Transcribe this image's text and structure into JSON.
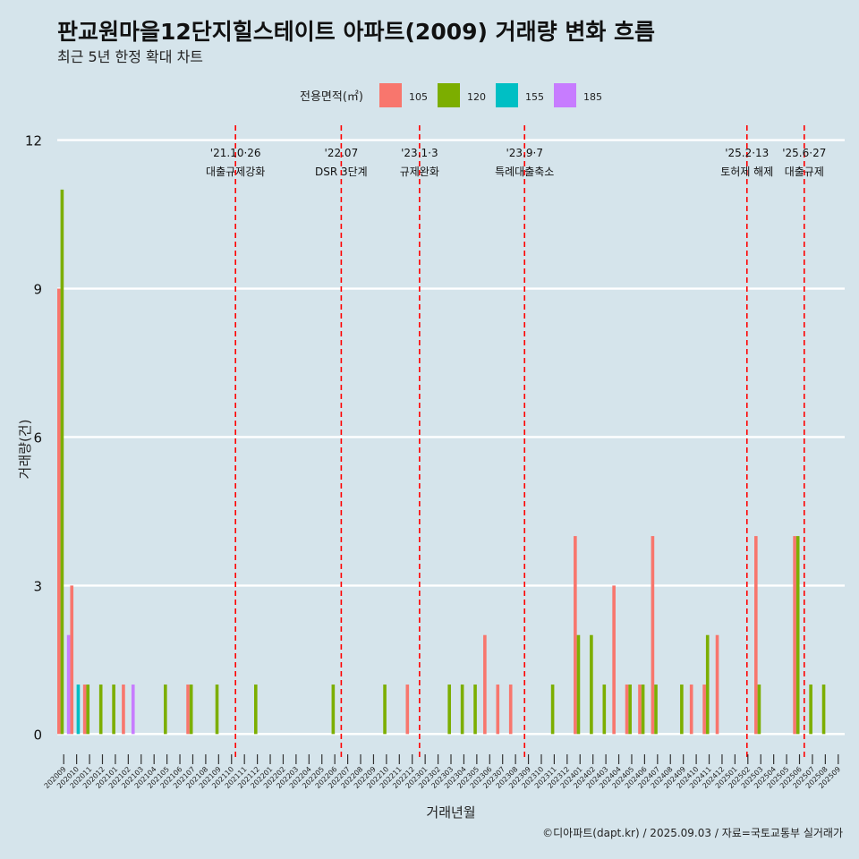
{
  "chart_data": {
    "type": "bar",
    "title": "판교원마을12단지힐스테이트 아파트(2009) 거래량 변화 흐름",
    "subtitle": "최근 5년 한정 확대 차트",
    "xlabel": "거래년월",
    "ylabel": "거래량(건)",
    "ylim": [
      -0.5,
      12.3
    ],
    "yticks": [
      0,
      3,
      6,
      9,
      12
    ],
    "grid": "horizontal",
    "legend": {
      "title": "전용면적(㎡)",
      "placement": "top"
    },
    "caption": "©디아파트(dapt.kr) / 2025.09.03 / 자료=국토교통부 실거래가",
    "categories": [
      "202009",
      "202010",
      "202011",
      "202012",
      "202101",
      "202102",
      "202103",
      "202104",
      "202105",
      "202106",
      "202107",
      "202108",
      "202109",
      "202110",
      "202111",
      "202112",
      "202201",
      "202202",
      "202203",
      "202204",
      "202205",
      "202206",
      "202207",
      "202208",
      "202209",
      "202210",
      "202211",
      "202212",
      "202301",
      "202302",
      "202303",
      "202304",
      "202305",
      "202306",
      "202307",
      "202308",
      "202309",
      "202310",
      "202311",
      "202312",
      "202401",
      "202402",
      "202403",
      "202404",
      "202405",
      "202406",
      "202407",
      "202408",
      "202409",
      "202410",
      "202411",
      "202412",
      "202501",
      "202502",
      "202503",
      "202504",
      "202505",
      "202506",
      "202507",
      "202508",
      "202509"
    ],
    "series": [
      {
        "name": "105",
        "color": "#f8766d",
        "values": [
          9,
          3,
          1,
          0,
          0,
          1,
          0,
          0,
          0,
          0,
          1,
          0,
          0,
          0,
          0,
          0,
          0,
          0,
          0,
          0,
          0,
          0,
          0,
          0,
          0,
          0,
          0,
          1,
          0,
          0,
          0,
          0,
          0,
          2,
          1,
          1,
          0,
          0,
          0,
          0,
          4,
          0,
          0,
          3,
          1,
          1,
          4,
          0,
          0,
          1,
          1,
          2,
          0,
          0,
          4,
          0,
          0,
          4,
          0,
          0,
          0
        ]
      },
      {
        "name": "120",
        "color": "#7cae00",
        "values": [
          11,
          0,
          1,
          1,
          1,
          0,
          0,
          0,
          1,
          0,
          1,
          0,
          1,
          0,
          0,
          1,
          0,
          0,
          0,
          0,
          0,
          1,
          0,
          0,
          0,
          1,
          0,
          0,
          0,
          0,
          1,
          1,
          1,
          0,
          0,
          0,
          0,
          0,
          1,
          0,
          2,
          2,
          1,
          0,
          1,
          1,
          1,
          0,
          1,
          0,
          2,
          0,
          0,
          0,
          1,
          0,
          0,
          4,
          1,
          1,
          0
        ]
      },
      {
        "name": "155",
        "color": "#00bfc4",
        "values": [
          0,
          1,
          0,
          0,
          0,
          0,
          0,
          0,
          0,
          0,
          0,
          0,
          0,
          0,
          0,
          0,
          0,
          0,
          0,
          0,
          0,
          0,
          0,
          0,
          0,
          0,
          0,
          0,
          0,
          0,
          0,
          0,
          0,
          0,
          0,
          0,
          0,
          0,
          0,
          0,
          0,
          0,
          0,
          0,
          0,
          0,
          0,
          0,
          0,
          0,
          0,
          0,
          0,
          0,
          0,
          0,
          0,
          0,
          0,
          0,
          0
        ]
      },
      {
        "name": "185",
        "color": "#c77cff",
        "values": [
          2,
          0,
          0,
          0,
          0,
          1,
          0,
          0,
          0,
          0,
          0,
          0,
          0,
          0,
          0,
          0,
          0,
          0,
          0,
          0,
          0,
          0,
          0,
          0,
          0,
          0,
          0,
          0,
          0,
          0,
          0,
          0,
          0,
          0,
          0,
          0,
          0,
          0,
          0,
          0,
          0,
          0,
          0,
          0,
          0,
          0,
          0,
          0,
          0,
          0,
          0,
          0,
          0,
          0,
          0,
          0,
          0,
          0,
          0,
          0,
          0
        ]
      }
    ],
    "annotations": [
      {
        "date": "2021-10-26",
        "line1": "'21.10·26",
        "line2": "대출규제강화"
      },
      {
        "date": "2022-07-01",
        "line1": "'22.07",
        "line2": "DSR 3단계"
      },
      {
        "date": "2023-01-03",
        "line1": "'23.1·3",
        "line2": "규제완화"
      },
      {
        "date": "2023-09-07",
        "line1": "'23.9·7",
        "line2": "특례대출축소"
      },
      {
        "date": "2025-02-13",
        "line1": "'25.2·13",
        "line2": "토허제 해제"
      },
      {
        "date": "2025-06-27",
        "line1": "'25.6·27",
        "line2": "대출규제"
      }
    ]
  }
}
